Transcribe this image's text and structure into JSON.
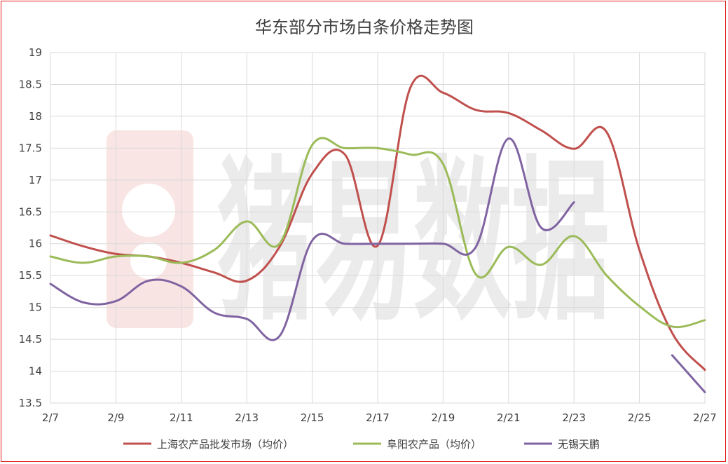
{
  "chart_data": {
    "type": "line",
    "title": "华东部分市场白条价格走势图",
    "xlabel": "",
    "ylabel": "",
    "x": [
      "2/7",
      "2/8",
      "2/9",
      "2/10",
      "2/11",
      "2/12",
      "2/13",
      "2/14",
      "2/15",
      "2/16",
      "2/17",
      "2/18",
      "2/19",
      "2/20",
      "2/21",
      "2/22",
      "2/23",
      "2/24",
      "2/25",
      "2/26",
      "2/27"
    ],
    "x_tick_labels": [
      "2/7",
      "2/9",
      "2/11",
      "2/13",
      "2/15",
      "2/17",
      "2/19",
      "2/21",
      "2/23",
      "2/25",
      "2/27"
    ],
    "ylim": [
      13.5,
      19
    ],
    "y_ticks": [
      13.5,
      14,
      14.5,
      15,
      15.5,
      16,
      16.5,
      17,
      17.5,
      18,
      18.5,
      19
    ],
    "grid": true,
    "legend_position": "bottom",
    "watermark": "猪易数据",
    "series": [
      {
        "name": "上海农产品批发市场（均价）",
        "color": "#c0504d",
        "values": [
          16.13,
          15.96,
          15.84,
          15.8,
          15.7,
          15.55,
          15.42,
          15.95,
          17.1,
          17.4,
          15.97,
          18.45,
          18.37,
          18.1,
          18.05,
          17.78,
          17.49,
          17.75,
          15.9,
          14.6,
          14.02
        ]
      },
      {
        "name": "阜阳农产品（均价）",
        "color": "#9bbb59",
        "values": [
          15.8,
          15.7,
          15.8,
          15.8,
          15.7,
          15.9,
          16.35,
          16.0,
          17.55,
          17.5,
          17.5,
          17.4,
          17.25,
          15.52,
          15.95,
          15.67,
          16.12,
          15.5,
          15.02,
          14.7,
          14.8
        ]
      },
      {
        "name": "无锡天鹏",
        "color": "#8064a2",
        "values": [
          15.37,
          15.08,
          15.1,
          15.42,
          15.33,
          14.92,
          14.82,
          14.55,
          16.05,
          16.0,
          16.0,
          16.0,
          16.0,
          15.95,
          17.65,
          16.25,
          16.65,
          null,
          null,
          14.25,
          13.67
        ]
      }
    ]
  }
}
